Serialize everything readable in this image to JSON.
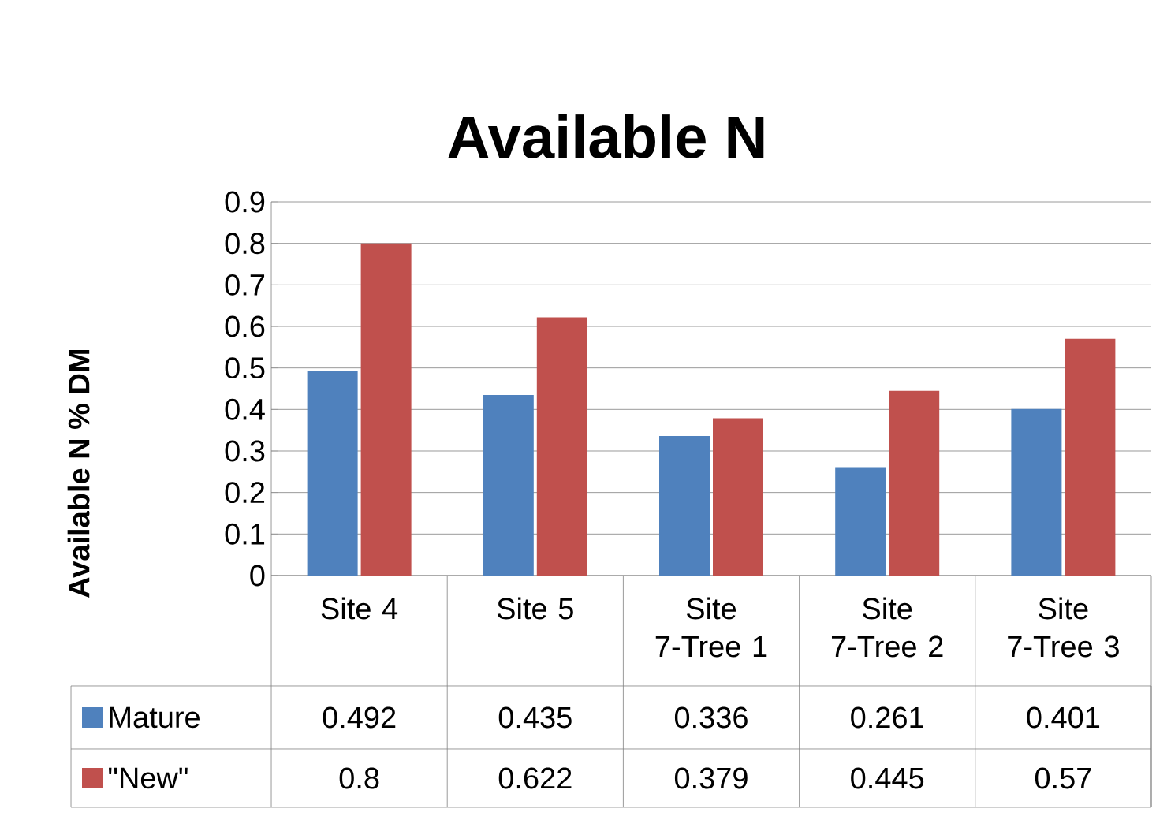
{
  "chart_data": {
    "type": "bar",
    "title": "Available N",
    "ylabel": "Available N % DM",
    "categories": [
      "Site 4",
      "Site 5",
      "Site 7-Tree 1",
      "Site 7-Tree 2",
      "Site 7-Tree 3"
    ],
    "series": [
      {
        "name": "Mature",
        "color": "#4f81bd",
        "values": [
          0.492,
          0.435,
          0.336,
          0.261,
          0.401
        ]
      },
      {
        "name": "\"New\"",
        "color": "#c0504d",
        "values": [
          0.8,
          0.622,
          0.379,
          0.445,
          0.57
        ]
      }
    ],
    "ylim": [
      0,
      0.9
    ],
    "yticks": [
      0,
      0.1,
      0.2,
      0.3,
      0.4,
      0.5,
      0.6,
      0.7,
      0.8,
      0.9
    ],
    "grid": "y",
    "legend": "bottom",
    "data_labels": true
  }
}
